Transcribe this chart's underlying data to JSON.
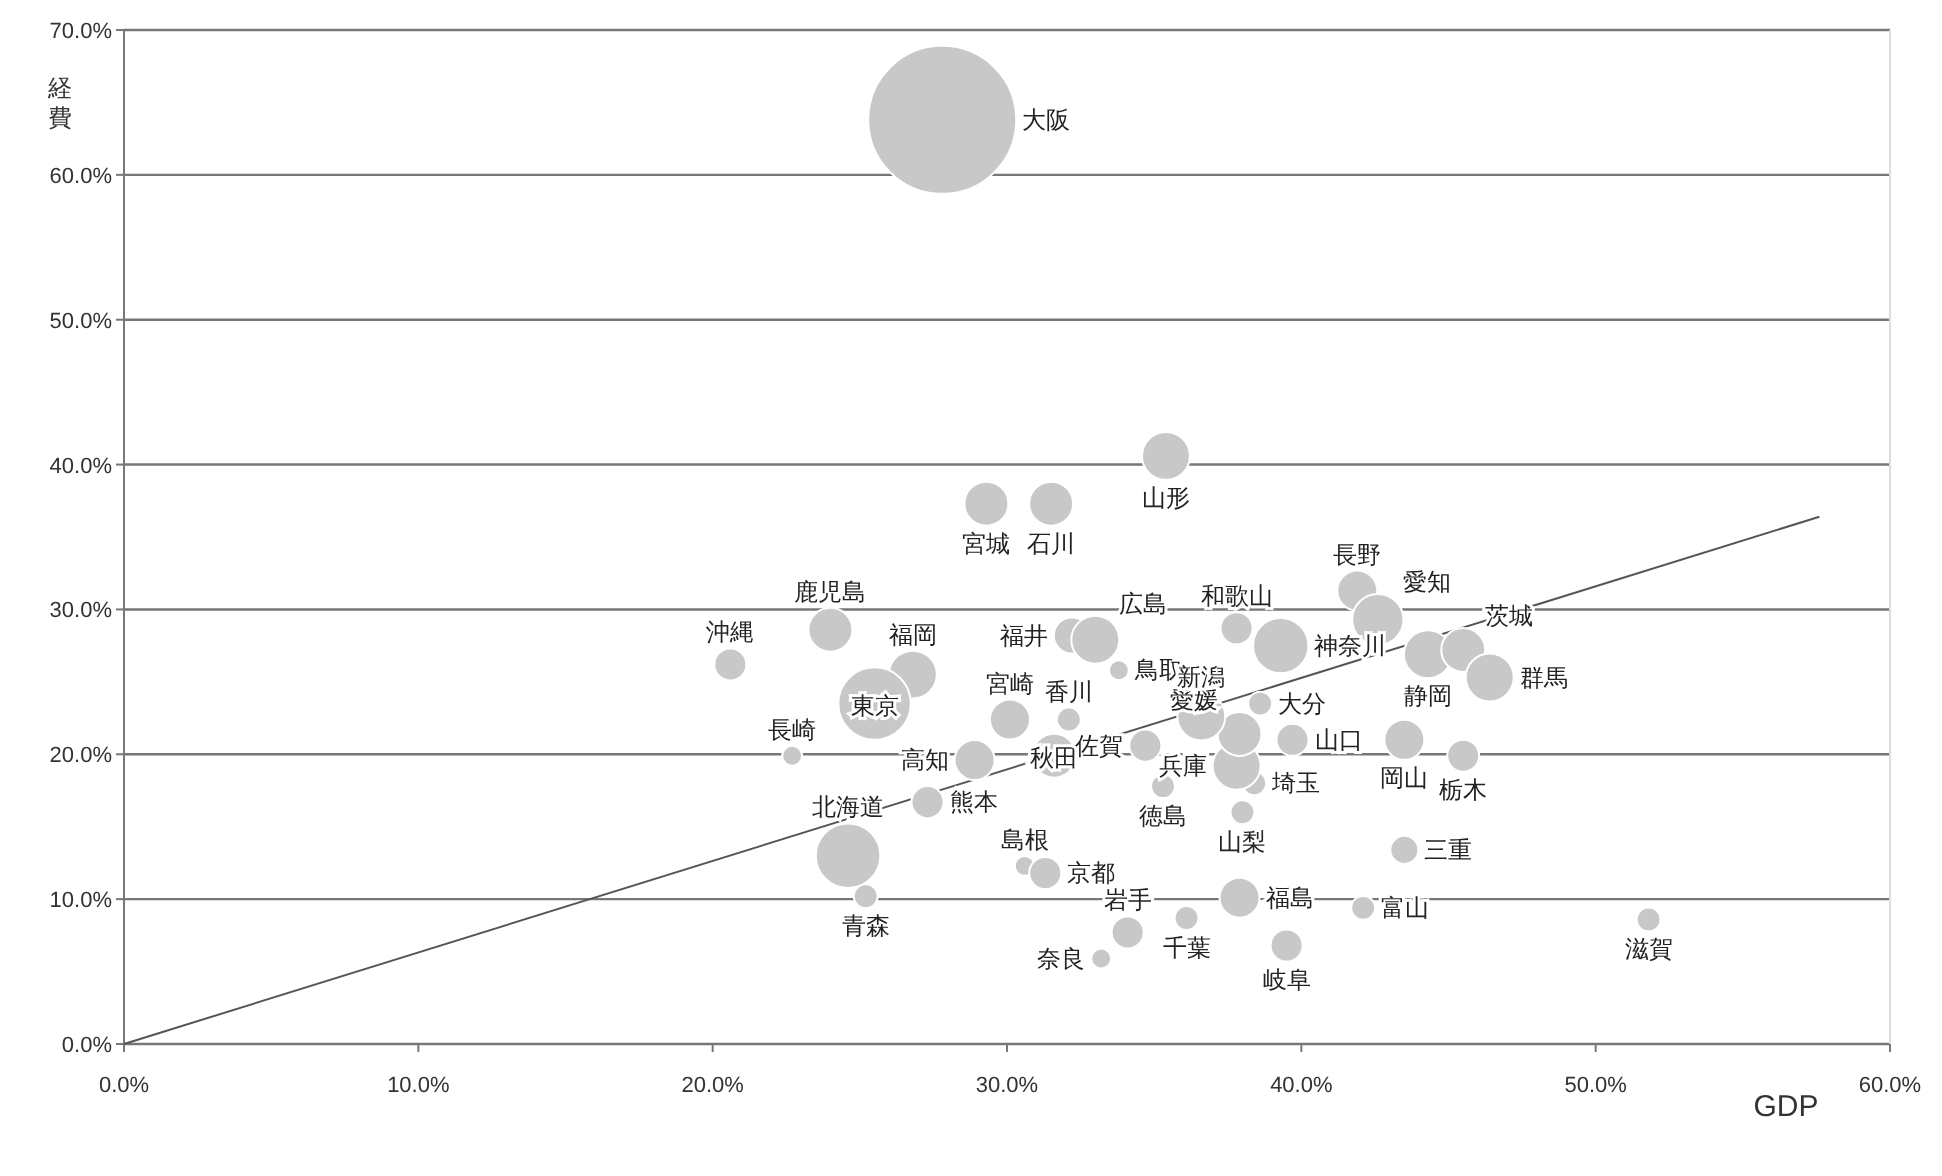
{
  "chart_data": {
    "type": "bubble",
    "xlabel": "GDP",
    "ylabel": "経費",
    "xlim": [
      0,
      60
    ],
    "ylim": [
      0,
      70
    ],
    "xticks": [
      {
        "value": 0,
        "label": "0.0%"
      },
      {
        "value": 10,
        "label": "10.0%"
      },
      {
        "value": 20,
        "label": "20.0%"
      },
      {
        "value": 30,
        "label": "30.0%"
      },
      {
        "value": 40,
        "label": "40.0%"
      },
      {
        "value": 50,
        "label": "50.0%"
      },
      {
        "value": 60,
        "label": "60.0%"
      }
    ],
    "yticks": [
      {
        "value": 0,
        "label": "0.0%"
      },
      {
        "value": 10,
        "label": "10.0%"
      },
      {
        "value": 20,
        "label": "20.0%"
      },
      {
        "value": 30,
        "label": "30.0%"
      },
      {
        "value": 40,
        "label": "40.0%"
      },
      {
        "value": 50,
        "label": "50.0%"
      },
      {
        "value": 60,
        "label": "60.0%"
      },
      {
        "value": 70,
        "label": "70.0%"
      }
    ],
    "grid": "y",
    "series": [
      {
        "name": "大阪",
        "color": "#c8c8c8",
        "x": [
          27.8
        ],
        "values": [
          63.8
        ],
        "sizes": [
          1
        ]
      },
      {
        "name": "山形",
        "color": "#c8c8c8",
        "x": [
          35.4
        ],
        "values": [
          40.6
        ],
        "sizes": [
          0.105
        ]
      },
      {
        "name": "宮城",
        "color": "#c8c8c8",
        "x": [
          29.3
        ],
        "values": [
          37.3
        ],
        "sizes": [
          0.088
        ]
      },
      {
        "name": "石川",
        "color": "#c8c8c8",
        "x": [
          31.5
        ],
        "values": [
          37.3
        ],
        "sizes": [
          0.088
        ]
      },
      {
        "name": "鹿児島",
        "color": "#c8c8c8",
        "x": [
          24.0
        ],
        "values": [
          28.6
        ],
        "sizes": [
          0.088
        ]
      },
      {
        "name": "沖縄",
        "color": "#c8c8c8",
        "x": [
          20.6
        ],
        "values": [
          26.2
        ],
        "sizes": [
          0.047
        ]
      },
      {
        "name": "福岡",
        "color": "#c8c8c8",
        "x": [
          26.8
        ],
        "values": [
          25.5
        ],
        "sizes": [
          0.105
        ]
      },
      {
        "name": "東京",
        "color": "#c8c8c8",
        "x": [
          25.5
        ],
        "values": [
          23.5
        ],
        "sizes": [
          0.24
        ]
      },
      {
        "name": "長崎",
        "color": "#c8c8c8",
        "x": [
          22.7
        ],
        "values": [
          19.9
        ],
        "sizes": [
          0.018
        ]
      },
      {
        "name": "福井",
        "color": "#c8c8c8",
        "x": [
          32.2
        ],
        "values": [
          28.2
        ],
        "sizes": [
          0.059
        ]
      },
      {
        "name": "広島",
        "color": "#c8c8c8",
        "x": [
          33.0
        ],
        "values": [
          27.9
        ],
        "sizes": [
          0.105
        ]
      },
      {
        "name": "鳥取",
        "color": "#c8c8c8",
        "x": [
          33.8
        ],
        "values": [
          25.8
        ],
        "sizes": [
          0.018
        ]
      },
      {
        "name": "宮崎",
        "color": "#c8c8c8",
        "x": [
          30.1
        ],
        "values": [
          22.4
        ],
        "sizes": [
          0.073
        ]
      },
      {
        "name": "香川",
        "color": "#c8c8c8",
        "x": [
          32.1
        ],
        "values": [
          22.4
        ],
        "sizes": [
          0.026
        ]
      },
      {
        "name": "秋田",
        "color": "#c8c8c8",
        "x": [
          31.6
        ],
        "values": [
          19.9
        ],
        "sizes": [
          0.088
        ]
      },
      {
        "name": "高知",
        "color": "#c8c8c8",
        "x": [
          28.9
        ],
        "values": [
          19.6
        ],
        "sizes": [
          0.073
        ]
      },
      {
        "name": "熊本",
        "color": "#c8c8c8",
        "x": [
          27.3
        ],
        "values": [
          16.7
        ],
        "sizes": [
          0.047
        ]
      },
      {
        "name": "北海道",
        "color": "#c8c8c8",
        "x": [
          24.6
        ],
        "values": [
          13.0
        ],
        "sizes": [
          0.19
        ]
      },
      {
        "name": "佐賀",
        "color": "#c8c8c8",
        "x": [
          34.7
        ],
        "values": [
          20.6
        ],
        "sizes": [
          0.047
        ]
      },
      {
        "name": "徳島",
        "color": "#c8c8c8",
        "x": [
          35.3
        ],
        "values": [
          17.8
        ],
        "sizes": [
          0.026
        ]
      },
      {
        "name": "島根",
        "color": "#c8c8c8",
        "x": [
          30.6
        ],
        "values": [
          12.3
        ],
        "sizes": [
          0.018
        ]
      },
      {
        "name": "京都",
        "color": "#c8c8c8",
        "x": [
          31.3
        ],
        "values": [
          11.8
        ],
        "sizes": [
          0.047
        ]
      },
      {
        "name": "青森",
        "color": "#c8c8c8",
        "x": [
          25.2
        ],
        "values": [
          10.2
        ],
        "sizes": [
          0.026
        ]
      },
      {
        "name": "岩手",
        "color": "#c8c8c8",
        "x": [
          34.1
        ],
        "values": [
          7.7
        ],
        "sizes": [
          0.047
        ]
      },
      {
        "name": "奈良",
        "color": "#c8c8c8",
        "x": [
          33.2
        ],
        "values": [
          5.9
        ],
        "sizes": [
          0.018
        ]
      },
      {
        "name": "千葉",
        "color": "#c8c8c8",
        "x": [
          36.1
        ],
        "values": [
          8.7
        ],
        "sizes": [
          0.026
        ]
      },
      {
        "name": "福島",
        "color": "#c8c8c8",
        "x": [
          37.9
        ],
        "values": [
          10.1
        ],
        "sizes": [
          0.073
        ]
      },
      {
        "name": "岐阜",
        "color": "#c8c8c8",
        "x": [
          39.5
        ],
        "values": [
          6.8
        ],
        "sizes": [
          0.047
        ]
      },
      {
        "name": "富山",
        "color": "#c8c8c8",
        "x": [
          42.1
        ],
        "values": [
          9.4
        ],
        "sizes": [
          0.026
        ]
      },
      {
        "name": "滋賀",
        "color": "#c8c8c8",
        "x": [
          51.8
        ],
        "values": [
          8.6
        ],
        "sizes": [
          0.026
        ]
      },
      {
        "name": "三重",
        "color": "#c8c8c8",
        "x": [
          43.5
        ],
        "values": [
          13.4
        ],
        "sizes": [
          0.036
        ]
      },
      {
        "name": "山梨",
        "color": "#c8c8c8",
        "x": [
          38.0
        ],
        "values": [
          16.0
        ],
        "sizes": [
          0.026
        ]
      },
      {
        "name": "埼玉",
        "color": "#c8c8c8",
        "x": [
          38.4
        ],
        "values": [
          18.0
        ],
        "sizes": [
          0.026
        ]
      },
      {
        "name": "兵庫",
        "color": "#c8c8c8",
        "x": [
          37.8
        ],
        "values": [
          19.2
        ],
        "sizes": [
          0.105
        ]
      },
      {
        "name": "愛媛",
        "color": "#c8c8c8",
        "x": [
          37.9
        ],
        "values": [
          21.4
        ],
        "sizes": [
          0.088
        ]
      },
      {
        "name": "新潟",
        "color": "#c8c8c8",
        "x": [
          36.6
        ],
        "values": [
          22.6
        ],
        "sizes": [
          0.105
        ]
      },
      {
        "name": "山口",
        "color": "#c8c8c8",
        "x": [
          39.7
        ],
        "values": [
          21.0
        ],
        "sizes": [
          0.047
        ]
      },
      {
        "name": "大分",
        "color": "#c8c8c8",
        "x": [
          38.6
        ],
        "values": [
          23.5
        ],
        "sizes": [
          0.026
        ]
      },
      {
        "name": "和歌山",
        "color": "#c8c8c8",
        "x": [
          37.8
        ],
        "values": [
          28.7
        ],
        "sizes": [
          0.047
        ]
      },
      {
        "name": "神奈川",
        "color": "#c8c8c8",
        "x": [
          39.3
        ],
        "values": [
          27.5
        ],
        "sizes": [
          0.14
        ]
      },
      {
        "name": "長野",
        "color": "#c8c8c8",
        "x": [
          41.9
        ],
        "values": [
          31.3
        ],
        "sizes": [
          0.073
        ]
      },
      {
        "name": "愛知",
        "color": "#c8c8c8",
        "x": [
          42.6
        ],
        "values": [
          29.3
        ],
        "sizes": [
          0.12
        ]
      },
      {
        "name": "静岡",
        "color": "#c8c8c8",
        "x": [
          44.3
        ],
        "values": [
          26.9
        ],
        "sizes": [
          0.105
        ]
      },
      {
        "name": "茨城",
        "color": "#c8c8c8",
        "x": [
          45.5
        ],
        "values": [
          27.2
        ],
        "sizes": [
          0.088
        ]
      },
      {
        "name": "群馬",
        "color": "#c8c8c8",
        "x": [
          46.4
        ],
        "values": [
          25.3
        ],
        "sizes": [
          0.105
        ]
      },
      {
        "name": "岡山",
        "color": "#c8c8c8",
        "x": [
          43.5
        ],
        "values": [
          21.0
        ],
        "sizes": [
          0.073
        ]
      },
      {
        "name": "栃木",
        "color": "#c8c8c8",
        "x": [
          45.5
        ],
        "values": [
          19.9
        ],
        "sizes": [
          0.047
        ]
      },
      {
        "type": "line",
        "color": "#555555",
        "x": [
          0,
          57.6
        ],
        "values": [
          0,
          36.4
        ],
        "marker": "none"
      }
    ]
  }
}
